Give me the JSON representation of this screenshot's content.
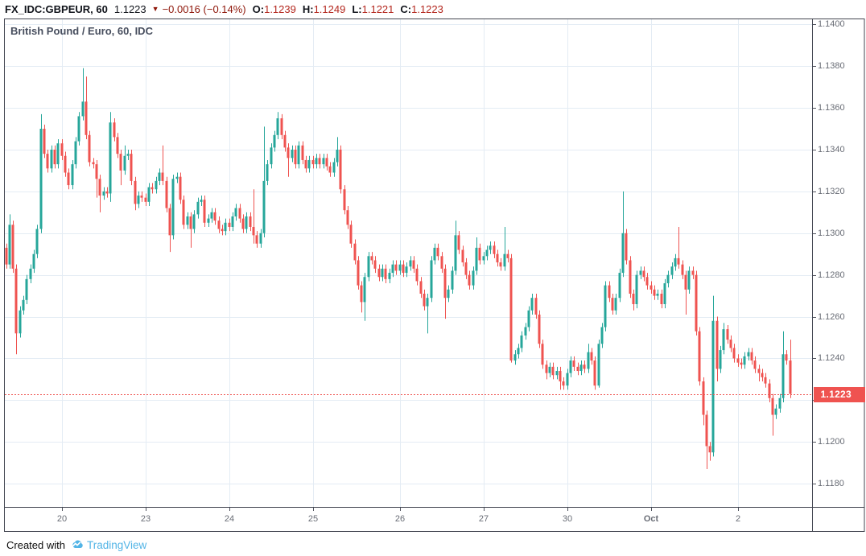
{
  "header": {
    "symbol": "FX_IDC:GBPEUR, 60",
    "last_price": "1.1223",
    "direction": "down",
    "change": "−0.0016 (−0.14%)",
    "ohlc": [
      {
        "label": "O:",
        "value": "1.1239"
      },
      {
        "label": "H:",
        "value": "1.1249"
      },
      {
        "label": "L:",
        "value": "1.1221"
      },
      {
        "label": "C:",
        "value": "1.1223"
      }
    ]
  },
  "chart": {
    "title": "British Pound / Euro, 60, IDC",
    "current_price_label": "1.1223"
  },
  "footer": {
    "created_with": "Created with",
    "brand": "TradingView"
  },
  "colors": {
    "up": "#26a69a",
    "down": "#ef5350",
    "grid": "#e4ecf4",
    "border": "#434651",
    "tick": "#50535e",
    "axis_text": "#686c75",
    "title_text": "#474e5e",
    "price_line": "#ef5350",
    "price_tag_bg": "#ef5350",
    "brand_blue": "#52b4e6",
    "legend_change_red": "#8e1609",
    "legend_value_red": "#b3261d"
  },
  "chart_data": {
    "type": "candlestick",
    "symbol": "FX_IDC:GBPEUR",
    "interval": "60",
    "exchange": "IDC",
    "title": "British Pound / Euro, 60, IDC",
    "current_price": 1.1223,
    "ylim": [
      1.11685,
      1.14028
    ],
    "y_ticks": [
      1.14,
      1.138,
      1.136,
      1.134,
      1.132,
      1.13,
      1.128,
      1.126,
      1.124,
      1.122,
      1.12,
      1.118
    ],
    "x_ticks": [
      {
        "label": "20",
        "bar": 16
      },
      {
        "label": "23",
        "bar": 40
      },
      {
        "label": "24",
        "bar": 64
      },
      {
        "label": "25",
        "bar": 88
      },
      {
        "label": "26",
        "bar": 113
      },
      {
        "label": "27",
        "bar": 137
      },
      {
        "label": "30",
        "bar": 161
      },
      {
        "label": "Oct",
        "bar": 185,
        "bold": true
      },
      {
        "label": "2",
        "bar": 210
      }
    ],
    "first_open": 1.1293,
    "default_wick": 0.0002,
    "closes": [
      1.1285,
      1.1304,
      1.1283,
      1.1252,
      1.1263,
      1.1268,
      1.1278,
      1.1283,
      1.129,
      1.1302,
      1.135,
      1.1338,
      1.1331,
      1.134,
      1.1333,
      1.1343,
      1.1337,
      1.1329,
      1.1323,
      1.1333,
      1.1344,
      1.1356,
      1.1363,
      1.1347,
      1.1334,
      1.1333,
      1.1326,
      1.1318,
      1.132,
      1.1319,
      1.1353,
      1.1346,
      1.1338,
      1.133,
      1.1337,
      1.1338,
      1.1325,
      1.1314,
      1.1318,
      1.1317,
      1.1315,
      1.1322,
      1.1321,
      1.1325,
      1.1329,
      1.1325,
      1.1312,
      1.1299,
      1.1326,
      1.1327,
      1.1316,
      1.1304,
      1.1308,
      1.1302,
      1.1309,
      1.1315,
      1.1316,
      1.1305,
      1.1307,
      1.131,
      1.1306,
      1.1302,
      1.1301,
      1.1305,
      1.1303,
      1.1308,
      1.1312,
      1.1307,
      1.1302,
      1.1308,
      1.1303,
      1.1299,
      1.1295,
      1.13,
      1.1325,
      1.1333,
      1.1341,
      1.1347,
      1.1355,
      1.1347,
      1.1341,
      1.1336,
      1.134,
      1.1333,
      1.1342,
      1.1335,
      1.1331,
      1.1335,
      1.1333,
      1.1336,
      1.1333,
      1.1336,
      1.1332,
      1.1329,
      1.1334,
      1.134,
      1.1321,
      1.1311,
      1.1304,
      1.1295,
      1.1287,
      1.1275,
      1.1267,
      1.1279,
      1.1289,
      1.1287,
      1.1283,
      1.1279,
      1.1283,
      1.1278,
      1.1281,
      1.1285,
      1.1282,
      1.1285,
      1.1281,
      1.1284,
      1.1287,
      1.1283,
      1.1277,
      1.1271,
      1.1265,
      1.1269,
      1.1287,
      1.1293,
      1.1289,
      1.1283,
      1.1269,
      1.1273,
      1.1282,
      1.1299,
      1.1292,
      1.1286,
      1.128,
      1.1275,
      1.1282,
      1.1293,
      1.1287,
      1.1289,
      1.1292,
      1.1294,
      1.129,
      1.1286,
      1.1284,
      1.129,
      1.1288,
      1.1239,
      1.1242,
      1.1245,
      1.1251,
      1.1255,
      1.1263,
      1.1269,
      1.1261,
      1.1247,
      1.1237,
      1.1233,
      1.1236,
      1.1232,
      1.1234,
      1.1229,
      1.1227,
      1.1233,
      1.1239,
      1.1236,
      1.1234,
      1.1237,
      1.1235,
      1.1243,
      1.1239,
      1.1227,
      1.1247,
      1.1255,
      1.1275,
      1.1269,
      1.1263,
      1.1269,
      1.1281,
      1.13,
      1.1287,
      1.1271,
      1.1266,
      1.128,
      1.1282,
      1.1279,
      1.1275,
      1.1273,
      1.127,
      1.1271,
      1.1266,
      1.1276,
      1.128,
      1.1284,
      1.1288,
      1.1285,
      1.128,
      1.1273,
      1.1282,
      1.128,
      1.1253,
      1.1229,
      1.1213,
      1.1198,
      1.1195,
      1.1258,
      1.1235,
      1.1244,
      1.1254,
      1.1249,
      1.1245,
      1.124,
      1.1238,
      1.1237,
      1.1241,
      1.1243,
      1.1239,
      1.1235,
      1.1233,
      1.1231,
      1.1228,
      1.1221,
      1.1213,
      1.1216,
      1.1221,
      1.1242,
      1.1239,
      1.1223
    ],
    "wick_overrides": {
      "1": [
        1.1309,
        null
      ],
      "3": [
        null,
        1.1242
      ],
      "10": [
        1.1357,
        null
      ],
      "22": [
        1.1379,
        null
      ],
      "23": [
        1.1375,
        null
      ],
      "26": [
        null,
        1.1317
      ],
      "27": [
        null,
        1.131
      ],
      "30": [
        1.1358,
        1.1315
      ],
      "33": [
        null,
        1.1323
      ],
      "34": [
        1.1342,
        null
      ],
      "37": [
        null,
        1.1311
      ],
      "45": [
        1.1342,
        null
      ],
      "47": [
        null,
        1.1291
      ],
      "53": [
        null,
        1.1293
      ],
      "71": [
        1.1321,
        1.1295
      ],
      "74": [
        1.1351,
        null
      ],
      "78": [
        1.1358,
        null
      ],
      "81": [
        null,
        1.1327
      ],
      "95": [
        1.1346,
        null
      ],
      "102": [
        null,
        1.1262
      ],
      "103": [
        null,
        1.1258
      ],
      "121": [
        null,
        1.1252
      ],
      "126": [
        null,
        1.1259
      ],
      "129": [
        1.1306,
        null
      ],
      "135": [
        1.1298,
        null
      ],
      "143": [
        1.1303,
        null
      ],
      "145": [
        null,
        1.1238
      ],
      "155": [
        null,
        1.123
      ],
      "159": [
        null,
        1.1225
      ],
      "167": [
        1.1247,
        null
      ],
      "170": [
        null,
        1.1226
      ],
      "177": [
        1.132,
        null
      ],
      "180": [
        null,
        1.1263
      ],
      "193": [
        1.1303,
        null
      ],
      "195": [
        null,
        1.1261
      ],
      "200": [
        null,
        1.1208
      ],
      "201": [
        null,
        1.1187
      ],
      "202": [
        null,
        1.1191
      ],
      "203": [
        1.127,
        null
      ],
      "204": [
        null,
        1.1229
      ],
      "206": [
        1.1257,
        null
      ],
      "216": [
        null,
        1.1229
      ],
      "220": [
        null,
        1.1203
      ],
      "223": [
        1.1253,
        null
      ],
      "225": [
        1.1249,
        1.1221
      ]
    }
  }
}
